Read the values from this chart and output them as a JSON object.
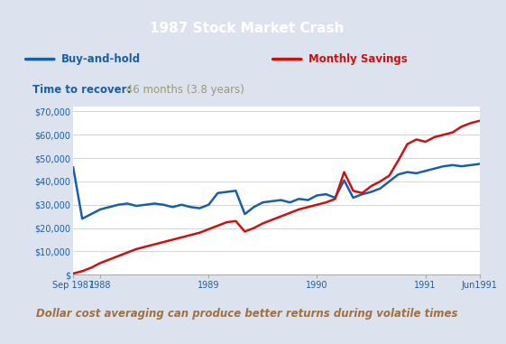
{
  "title": "1987 Stock Market Crash",
  "title_bg": "#1878c0",
  "title_color": "#ffffff",
  "legend_label1": "Buy-and-hold",
  "legend_label2": "Monthly Savings",
  "legend_color1": "#1a5ea8",
  "legend_color2": "#cc1111",
  "recover_label": "Time to recover:",
  "recover_value": " 46 months (3.8 years)",
  "footer_text": "Dollar cost averaging can produce better returns during volatile times",
  "footer_color": "#a07040",
  "legend_bg": "#e8eaf0",
  "plot_bg": "#ffffff",
  "outer_bg": "#dde3ee",
  "ytick_values": [
    0,
    10000,
    20000,
    30000,
    40000,
    50000,
    60000,
    70000
  ],
  "xtick_pos": [
    0,
    3,
    15,
    27,
    39,
    45
  ],
  "xlabel_ticks": [
    "Sep 1987",
    "1988",
    "1989",
    "1990",
    "1991",
    "Jun1991"
  ],
  "buy_hold_y": [
    46000,
    24000,
    26000,
    28000,
    29000,
    30000,
    30500,
    29500,
    30000,
    30500,
    30000,
    29000,
    30000,
    29000,
    28500,
    30000,
    35000,
    35500,
    36000,
    26000,
    29000,
    31000,
    31500,
    32000,
    31000,
    32500,
    32000,
    34000,
    34500,
    33000,
    40500,
    33000,
    34500,
    35500,
    37000,
    40000,
    43000,
    44000,
    43500,
    44500,
    45500,
    46500,
    47000,
    46500,
    47000,
    47500
  ],
  "monthly_y": [
    500,
    1500,
    3000,
    5000,
    6500,
    8000,
    9500,
    11000,
    12000,
    13000,
    14000,
    15000,
    16000,
    17000,
    18000,
    19500,
    21000,
    22500,
    23000,
    18500,
    20000,
    22000,
    23500,
    25000,
    26500,
    28000,
    29000,
    30000,
    31000,
    32500,
    44000,
    36000,
    35000,
    38000,
    40000,
    42500,
    49000,
    56000,
    58000,
    57000,
    59000,
    60000,
    61000,
    63500,
    65000,
    66000
  ]
}
